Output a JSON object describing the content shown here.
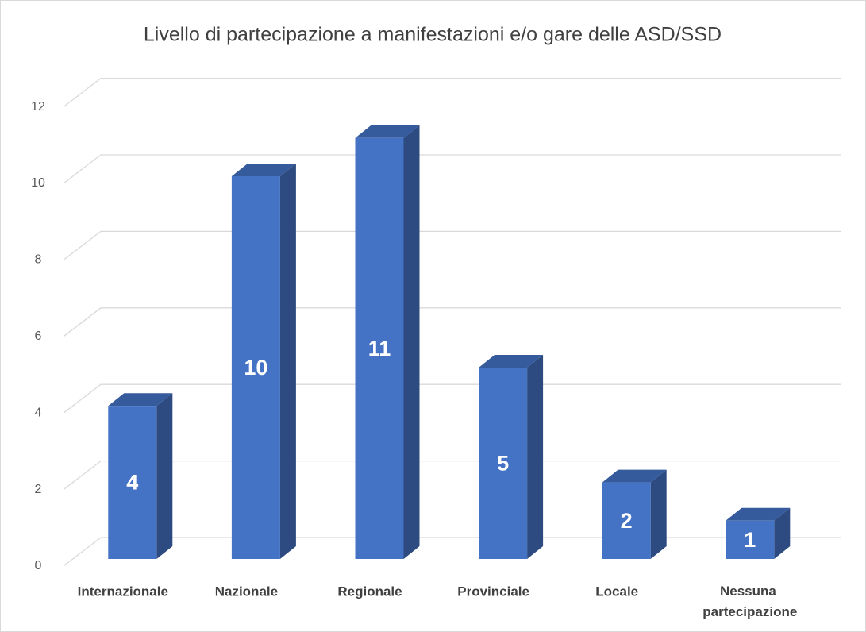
{
  "chart_data": {
    "type": "bar3d",
    "title": "Livello di partecipazione a manifestazioni e/o gare delle ASD/SSD",
    "categories": [
      "Internazionale",
      "Nazionale",
      "Regionale",
      "Provinciale",
      "Locale",
      "Nessuna partecipazione"
    ],
    "values": [
      4,
      10,
      11,
      5,
      2,
      1
    ],
    "color": "#4472c4",
    "ylim": [
      0,
      12
    ],
    "yticks": [
      0,
      2,
      4,
      6,
      8,
      10,
      12
    ],
    "grid": true
  }
}
